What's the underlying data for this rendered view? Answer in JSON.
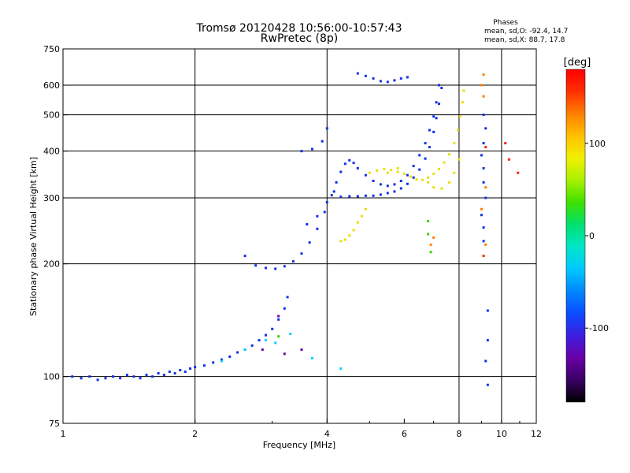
{
  "header": {
    "title_line1": "Tromsø 20120428 10:56:00-10:57:43",
    "title_line2": "RwPretec (8p)"
  },
  "phases_box": {
    "heading": "Phases",
    "line1": "mean, sd,O: -92.4, 14.7",
    "line2": "mean, sd,X:  88.7, 17.8"
  },
  "colorbar": {
    "label": "[deg]",
    "ticks": [
      {
        "value": 100,
        "label": "100"
      },
      {
        "value": 0,
        "label": "0"
      },
      {
        "value": -100,
        "label": "-100"
      }
    ],
    "range": [
      -180,
      180
    ],
    "colors": [
      "#000000",
      "#3a0063",
      "#6a00a8",
      "#3c1fe0",
      "#0a4cff",
      "#0087ff",
      "#00c8ff",
      "#00e6c8",
      "#00e070",
      "#3ee000",
      "#a8f000",
      "#f0f000",
      "#ffc000",
      "#ff8000",
      "#ff3000",
      "#ff0000"
    ]
  },
  "chart_data": {
    "type": "scatter",
    "title": "Tromsø 20120428 10:56:00-10:57:43",
    "subtitle": "RwPretec (8p)",
    "xlabel": "Frequency [MHz]",
    "ylabel": "Stationary phase Virtual Height [km]",
    "xscale": "log",
    "yscale": "log",
    "xlim": [
      1,
      12
    ],
    "ylim": [
      75,
      750
    ],
    "xticks": [
      {
        "value": 1,
        "label": "1"
      },
      {
        "value": 2,
        "label": "2"
      },
      {
        "value": 4,
        "label": "4"
      },
      {
        "value": 6,
        "label": "6"
      },
      {
        "value": 8,
        "label": "8"
      },
      {
        "value": 10,
        "label": "10"
      },
      {
        "value": 12,
        "label": "12"
      }
    ],
    "yticks": [
      {
        "value": 75,
        "label": "75"
      },
      {
        "value": 100,
        "label": "100"
      },
      {
        "value": 200,
        "label": "200"
      },
      {
        "value": 300,
        "label": "300"
      },
      {
        "value": 400,
        "label": "400"
      },
      {
        "value": 500,
        "label": "500"
      },
      {
        "value": 600,
        "label": "600"
      },
      {
        "value": 750,
        "label": "750"
      }
    ],
    "grid": true,
    "gridlines_x": [
      2,
      4,
      8,
      10
    ],
    "gridlines_y": [
      100,
      200,
      300,
      400,
      500,
      600
    ],
    "series": [
      {
        "color": "#1030e8",
        "points": [
          [
            1.05,
            100
          ],
          [
            1.1,
            99
          ],
          [
            1.15,
            100
          ],
          [
            1.2,
            98
          ],
          [
            1.25,
            99
          ],
          [
            1.3,
            100
          ],
          [
            1.35,
            99
          ],
          [
            1.4,
            101
          ],
          [
            1.45,
            100
          ],
          [
            1.5,
            99
          ],
          [
            1.55,
            101
          ],
          [
            1.6,
            100
          ],
          [
            1.65,
            102
          ],
          [
            1.7,
            101
          ],
          [
            1.75,
            103
          ],
          [
            1.8,
            102
          ],
          [
            1.85,
            104
          ],
          [
            1.9,
            103
          ],
          [
            1.95,
            105
          ],
          [
            2.0,
            106
          ],
          [
            2.1,
            107
          ],
          [
            2.2,
            109
          ],
          [
            2.3,
            111
          ],
          [
            2.4,
            113
          ],
          [
            2.5,
            116
          ],
          [
            2.6,
            118
          ],
          [
            2.7,
            121
          ],
          [
            2.8,
            125
          ],
          [
            2.9,
            129
          ],
          [
            3.0,
            134
          ],
          [
            3.1,
            142
          ],
          [
            3.2,
            152
          ],
          [
            3.25,
            163
          ],
          [
            2.6,
            210
          ],
          [
            2.75,
            198
          ],
          [
            2.9,
            195
          ],
          [
            3.05,
            194
          ],
          [
            3.2,
            197
          ],
          [
            3.35,
            203
          ],
          [
            3.5,
            213
          ],
          [
            3.65,
            228
          ],
          [
            3.8,
            248
          ],
          [
            3.95,
            275
          ],
          [
            4.1,
            305
          ],
          [
            4.2,
            330
          ],
          [
            4.3,
            352
          ],
          [
            4.4,
            370
          ],
          [
            4.5,
            378
          ],
          [
            4.6,
            372
          ],
          [
            4.7,
            360
          ],
          [
            4.9,
            345
          ],
          [
            5.1,
            333
          ],
          [
            5.3,
            326
          ],
          [
            5.5,
            323
          ],
          [
            5.7,
            326
          ],
          [
            5.9,
            333
          ],
          [
            6.1,
            345
          ],
          [
            6.3,
            365
          ],
          [
            6.5,
            390
          ],
          [
            6.7,
            420
          ],
          [
            6.85,
            455
          ],
          [
            7.0,
            495
          ],
          [
            7.1,
            540
          ],
          [
            7.2,
            600
          ],
          [
            3.6,
            255
          ],
          [
            3.8,
            268
          ],
          [
            4.0,
            292
          ],
          [
            4.15,
            312
          ],
          [
            4.3,
            302
          ],
          [
            4.5,
            303
          ],
          [
            4.7,
            303
          ],
          [
            4.9,
            304
          ],
          [
            5.1,
            304
          ],
          [
            5.3,
            306
          ],
          [
            5.5,
            309
          ],
          [
            5.7,
            312
          ],
          [
            5.9,
            318
          ],
          [
            6.1,
            327
          ],
          [
            6.3,
            340
          ],
          [
            6.5,
            357
          ],
          [
            6.7,
            382
          ],
          [
            6.85,
            410
          ],
          [
            7.0,
            450
          ],
          [
            7.1,
            490
          ],
          [
            7.2,
            535
          ],
          [
            7.3,
            590
          ],
          [
            4.7,
            645
          ],
          [
            4.9,
            635
          ],
          [
            5.1,
            625
          ],
          [
            5.3,
            615
          ],
          [
            5.5,
            612
          ],
          [
            5.7,
            618
          ],
          [
            5.9,
            625
          ],
          [
            6.1,
            630
          ],
          [
            3.5,
            400
          ],
          [
            3.7,
            405
          ],
          [
            3.9,
            425
          ],
          [
            4.0,
            460
          ],
          [
            9.1,
            230
          ],
          [
            9.1,
            250
          ],
          [
            9.0,
            270
          ],
          [
            9.2,
            300
          ],
          [
            9.1,
            330
          ],
          [
            9.1,
            360
          ],
          [
            9.0,
            390
          ],
          [
            9.1,
            420
          ],
          [
            9.2,
            460
          ],
          [
            9.1,
            500
          ],
          [
            9.3,
            150
          ],
          [
            9.3,
            125
          ],
          [
            9.2,
            110
          ],
          [
            9.3,
            95
          ]
        ]
      },
      {
        "color": "#e8e000",
        "points": [
          [
            4.3,
            230
          ],
          [
            4.4,
            232
          ],
          [
            4.5,
            238
          ],
          [
            4.6,
            246
          ],
          [
            4.7,
            258
          ],
          [
            4.8,
            268
          ],
          [
            4.9,
            280
          ],
          [
            5.0,
            350
          ],
          [
            5.2,
            355
          ],
          [
            5.4,
            358
          ],
          [
            5.6,
            356
          ],
          [
            5.8,
            352
          ],
          [
            6.0,
            348
          ],
          [
            6.2,
            342
          ],
          [
            6.4,
            336
          ],
          [
            6.6,
            335
          ],
          [
            6.8,
            340
          ],
          [
            7.0,
            348
          ],
          [
            7.2,
            358
          ],
          [
            7.4,
            373
          ],
          [
            7.6,
            392
          ],
          [
            7.8,
            420
          ],
          [
            7.95,
            455
          ],
          [
            8.05,
            495
          ],
          [
            8.15,
            540
          ],
          [
            8.2,
            580
          ],
          [
            6.8,
            330
          ],
          [
            7.0,
            320
          ],
          [
            7.3,
            318
          ],
          [
            7.6,
            330
          ],
          [
            7.8,
            350
          ],
          [
            8.0,
            380
          ],
          [
            5.5,
            350
          ],
          [
            5.8,
            360
          ]
        ]
      },
      {
        "color": "#00d0ff",
        "points": [
          [
            2.3,
            110
          ],
          [
            2.6,
            118
          ],
          [
            2.9,
            125
          ],
          [
            3.05,
            123
          ],
          [
            3.3,
            130
          ],
          [
            3.7,
            112
          ],
          [
            4.3,
            105
          ]
        ]
      },
      {
        "color": "#7000b0",
        "points": [
          [
            3.2,
            115
          ],
          [
            3.5,
            118
          ],
          [
            3.1,
            145
          ],
          [
            2.85,
            118
          ]
        ]
      },
      {
        "color": "#40d000",
        "points": [
          [
            3.1,
            128
          ],
          [
            6.8,
            260
          ],
          [
            6.9,
            215
          ],
          [
            6.8,
            240
          ]
        ]
      },
      {
        "color": "#ff8000",
        "points": [
          [
            7.0,
            235
          ],
          [
            6.9,
            225
          ],
          [
            9.2,
            225
          ],
          [
            9.1,
            640
          ],
          [
            9.0,
            600
          ],
          [
            9.1,
            560
          ],
          [
            9.0,
            280
          ],
          [
            9.2,
            320
          ]
        ]
      },
      {
        "color": "#ff2000",
        "points": [
          [
            9.2,
            410
          ],
          [
            10.2,
            420
          ],
          [
            10.4,
            380
          ],
          [
            9.1,
            210
          ],
          [
            10.9,
            350
          ]
        ]
      }
    ]
  }
}
